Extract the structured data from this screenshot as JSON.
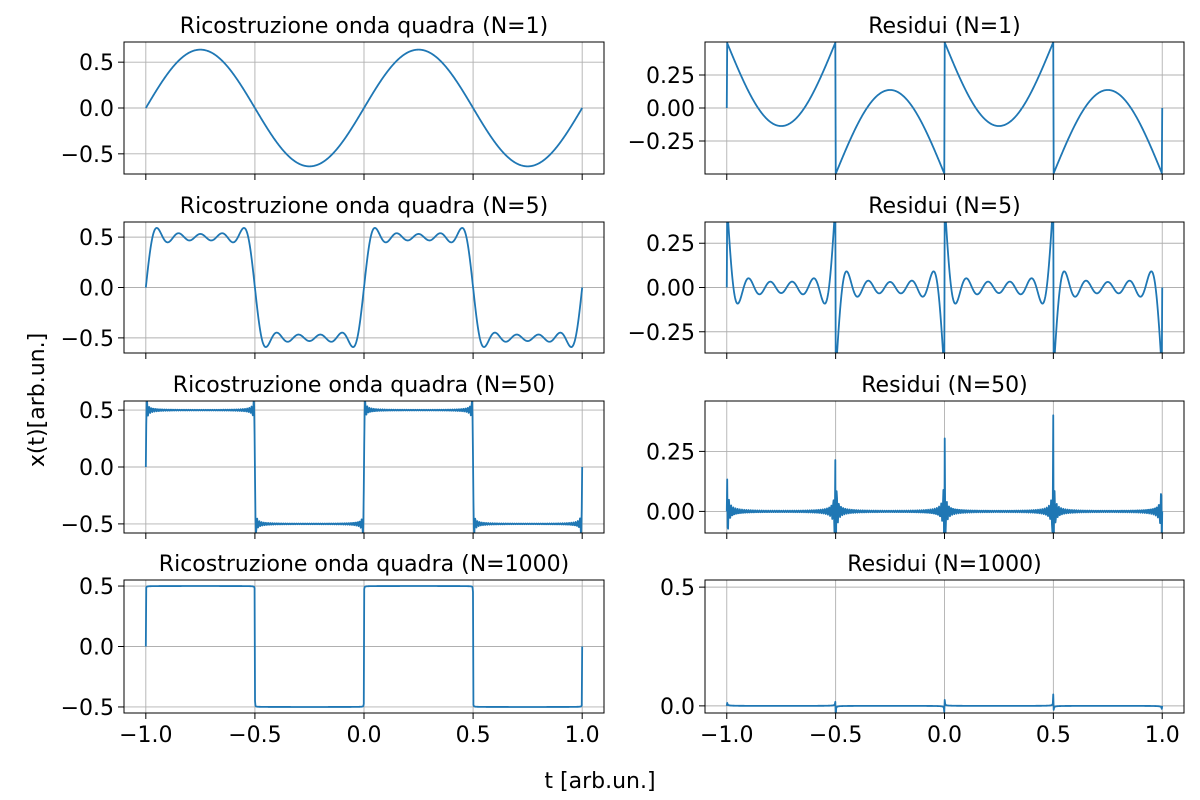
{
  "figure": {
    "xlabel": "t  [arb.un.]",
    "ylabel": "x(t)[arb.un.]",
    "line_color": "#1f77b4"
  },
  "chart_data": [
    {
      "type": "line",
      "title": "Ricostruzione onda quadra (N=1)",
      "signal": "reconstruction",
      "harmonics": 1,
      "xlim": [
        -1.1,
        1.1
      ],
      "ylim": [
        -0.72,
        0.72
      ],
      "xticks": [
        -1.0,
        -0.5,
        0.0,
        0.5,
        1.0
      ],
      "xticklabels": [
        "",
        "",
        "",
        "",
        ""
      ],
      "yticks": [
        -0.5,
        0.0,
        0.5
      ],
      "yticklabels": [
        "−0.5",
        "0.0",
        "0.5"
      ],
      "grid": true,
      "series": [
        {
          "x_range": [
            -1.0,
            1.0
          ],
          "samples": 1000
        }
      ]
    },
    {
      "type": "line",
      "title": "Residui (N=1)",
      "signal": "residual",
      "harmonics": 1,
      "xlim": [
        -1.1,
        1.1
      ],
      "ylim": [
        -0.5,
        0.5
      ],
      "xticks": [
        -1.0,
        -0.5,
        0.0,
        0.5,
        1.0
      ],
      "xticklabels": [
        "",
        "",
        "",
        "",
        ""
      ],
      "yticks": [
        -0.25,
        0.0,
        0.25
      ],
      "yticklabels": [
        "−0.25",
        "0.00",
        "0.25"
      ],
      "grid": true,
      "series": [
        {
          "x_range": [
            -1.0,
            1.0
          ],
          "samples": 1000
        }
      ]
    },
    {
      "type": "line",
      "title": "Ricostruzione onda quadra (N=5)",
      "signal": "reconstruction",
      "harmonics": 5,
      "xlim": [
        -1.1,
        1.1
      ],
      "ylim": [
        -0.65,
        0.65
      ],
      "xticks": [
        -1.0,
        -0.5,
        0.0,
        0.5,
        1.0
      ],
      "xticklabels": [
        "",
        "",
        "",
        "",
        ""
      ],
      "yticks": [
        -0.5,
        0.0,
        0.5
      ],
      "yticklabels": [
        "−0.5",
        "0.0",
        "0.5"
      ],
      "grid": true,
      "series": [
        {
          "x_range": [
            -1.0,
            1.0
          ],
          "samples": 1000
        }
      ]
    },
    {
      "type": "line",
      "title": "Residui (N=5)",
      "signal": "residual",
      "harmonics": 5,
      "xlim": [
        -1.1,
        1.1
      ],
      "ylim": [
        -0.37,
        0.37
      ],
      "xticks": [
        -1.0,
        -0.5,
        0.0,
        0.5,
        1.0
      ],
      "xticklabels": [
        "",
        "",
        "",
        "",
        ""
      ],
      "yticks": [
        -0.25,
        0.0,
        0.25
      ],
      "yticklabels": [
        "−0.25",
        "0.00",
        "0.25"
      ],
      "grid": true,
      "series": [
        {
          "x_range": [
            -1.0,
            1.0
          ],
          "samples": 1000
        }
      ]
    },
    {
      "type": "line",
      "title": "Ricostruzione onda quadra (N=50)",
      "signal": "reconstruction",
      "harmonics": 50,
      "xlim": [
        -1.1,
        1.1
      ],
      "ylim": [
        -0.58,
        0.58
      ],
      "xticks": [
        -1.0,
        -0.5,
        0.0,
        0.5,
        1.0
      ],
      "xticklabels": [
        "",
        "",
        "",
        "",
        ""
      ],
      "yticks": [
        -0.5,
        0.0,
        0.5
      ],
      "yticklabels": [
        "−0.5",
        "0.0",
        "0.5"
      ],
      "grid": true,
      "series": [
        {
          "x_range": [
            -1.0,
            1.0
          ],
          "samples": 1000
        }
      ]
    },
    {
      "type": "line",
      "title": "Residui (N=50)",
      "signal": "residual",
      "harmonics": 50,
      "xlim": [
        -1.1,
        1.1
      ],
      "ylim": [
        -0.09,
        0.46
      ],
      "xticks": [
        -1.0,
        -0.5,
        0.0,
        0.5,
        1.0
      ],
      "xticklabels": [
        "",
        "",
        "",
        "",
        ""
      ],
      "yticks": [
        0.0,
        0.25
      ],
      "yticklabels": [
        "0.00",
        "0.25"
      ],
      "grid": true,
      "series": [
        {
          "x_range": [
            -1.0,
            1.0
          ],
          "samples": 1000
        }
      ]
    },
    {
      "type": "line",
      "title": "Ricostruzione onda quadra (N=1000)",
      "signal": "reconstruction",
      "harmonics": 1000,
      "xlim": [
        -1.1,
        1.1
      ],
      "ylim": [
        -0.55,
        0.55
      ],
      "xticks": [
        -1.0,
        -0.5,
        0.0,
        0.5,
        1.0
      ],
      "xticklabels": [
        "−1.0",
        "−0.5",
        "0.0",
        "0.5",
        "1.0"
      ],
      "yticks": [
        -0.5,
        0.0,
        0.5
      ],
      "yticklabels": [
        "−0.5",
        "0.0",
        "0.5"
      ],
      "grid": true,
      "series": [
        {
          "x_range": [
            -1.0,
            1.0
          ],
          "samples": 1000
        }
      ]
    },
    {
      "type": "line",
      "title": "Residui (N=1000)",
      "signal": "residual",
      "harmonics": 1000,
      "xlim": [
        -1.1,
        1.1
      ],
      "ylim": [
        -0.03,
        0.53
      ],
      "xticks": [
        -1.0,
        -0.5,
        0.0,
        0.5,
        1.0
      ],
      "xticklabels": [
        "−1.0",
        "−0.5",
        "0.0",
        "0.5",
        "1.0"
      ],
      "yticks": [
        0.0,
        0.5
      ],
      "yticklabels": [
        "0.0",
        "0.5"
      ],
      "grid": true,
      "series": [
        {
          "x_range": [
            -1.0,
            1.0
          ],
          "samples": 1000
        }
      ]
    }
  ]
}
